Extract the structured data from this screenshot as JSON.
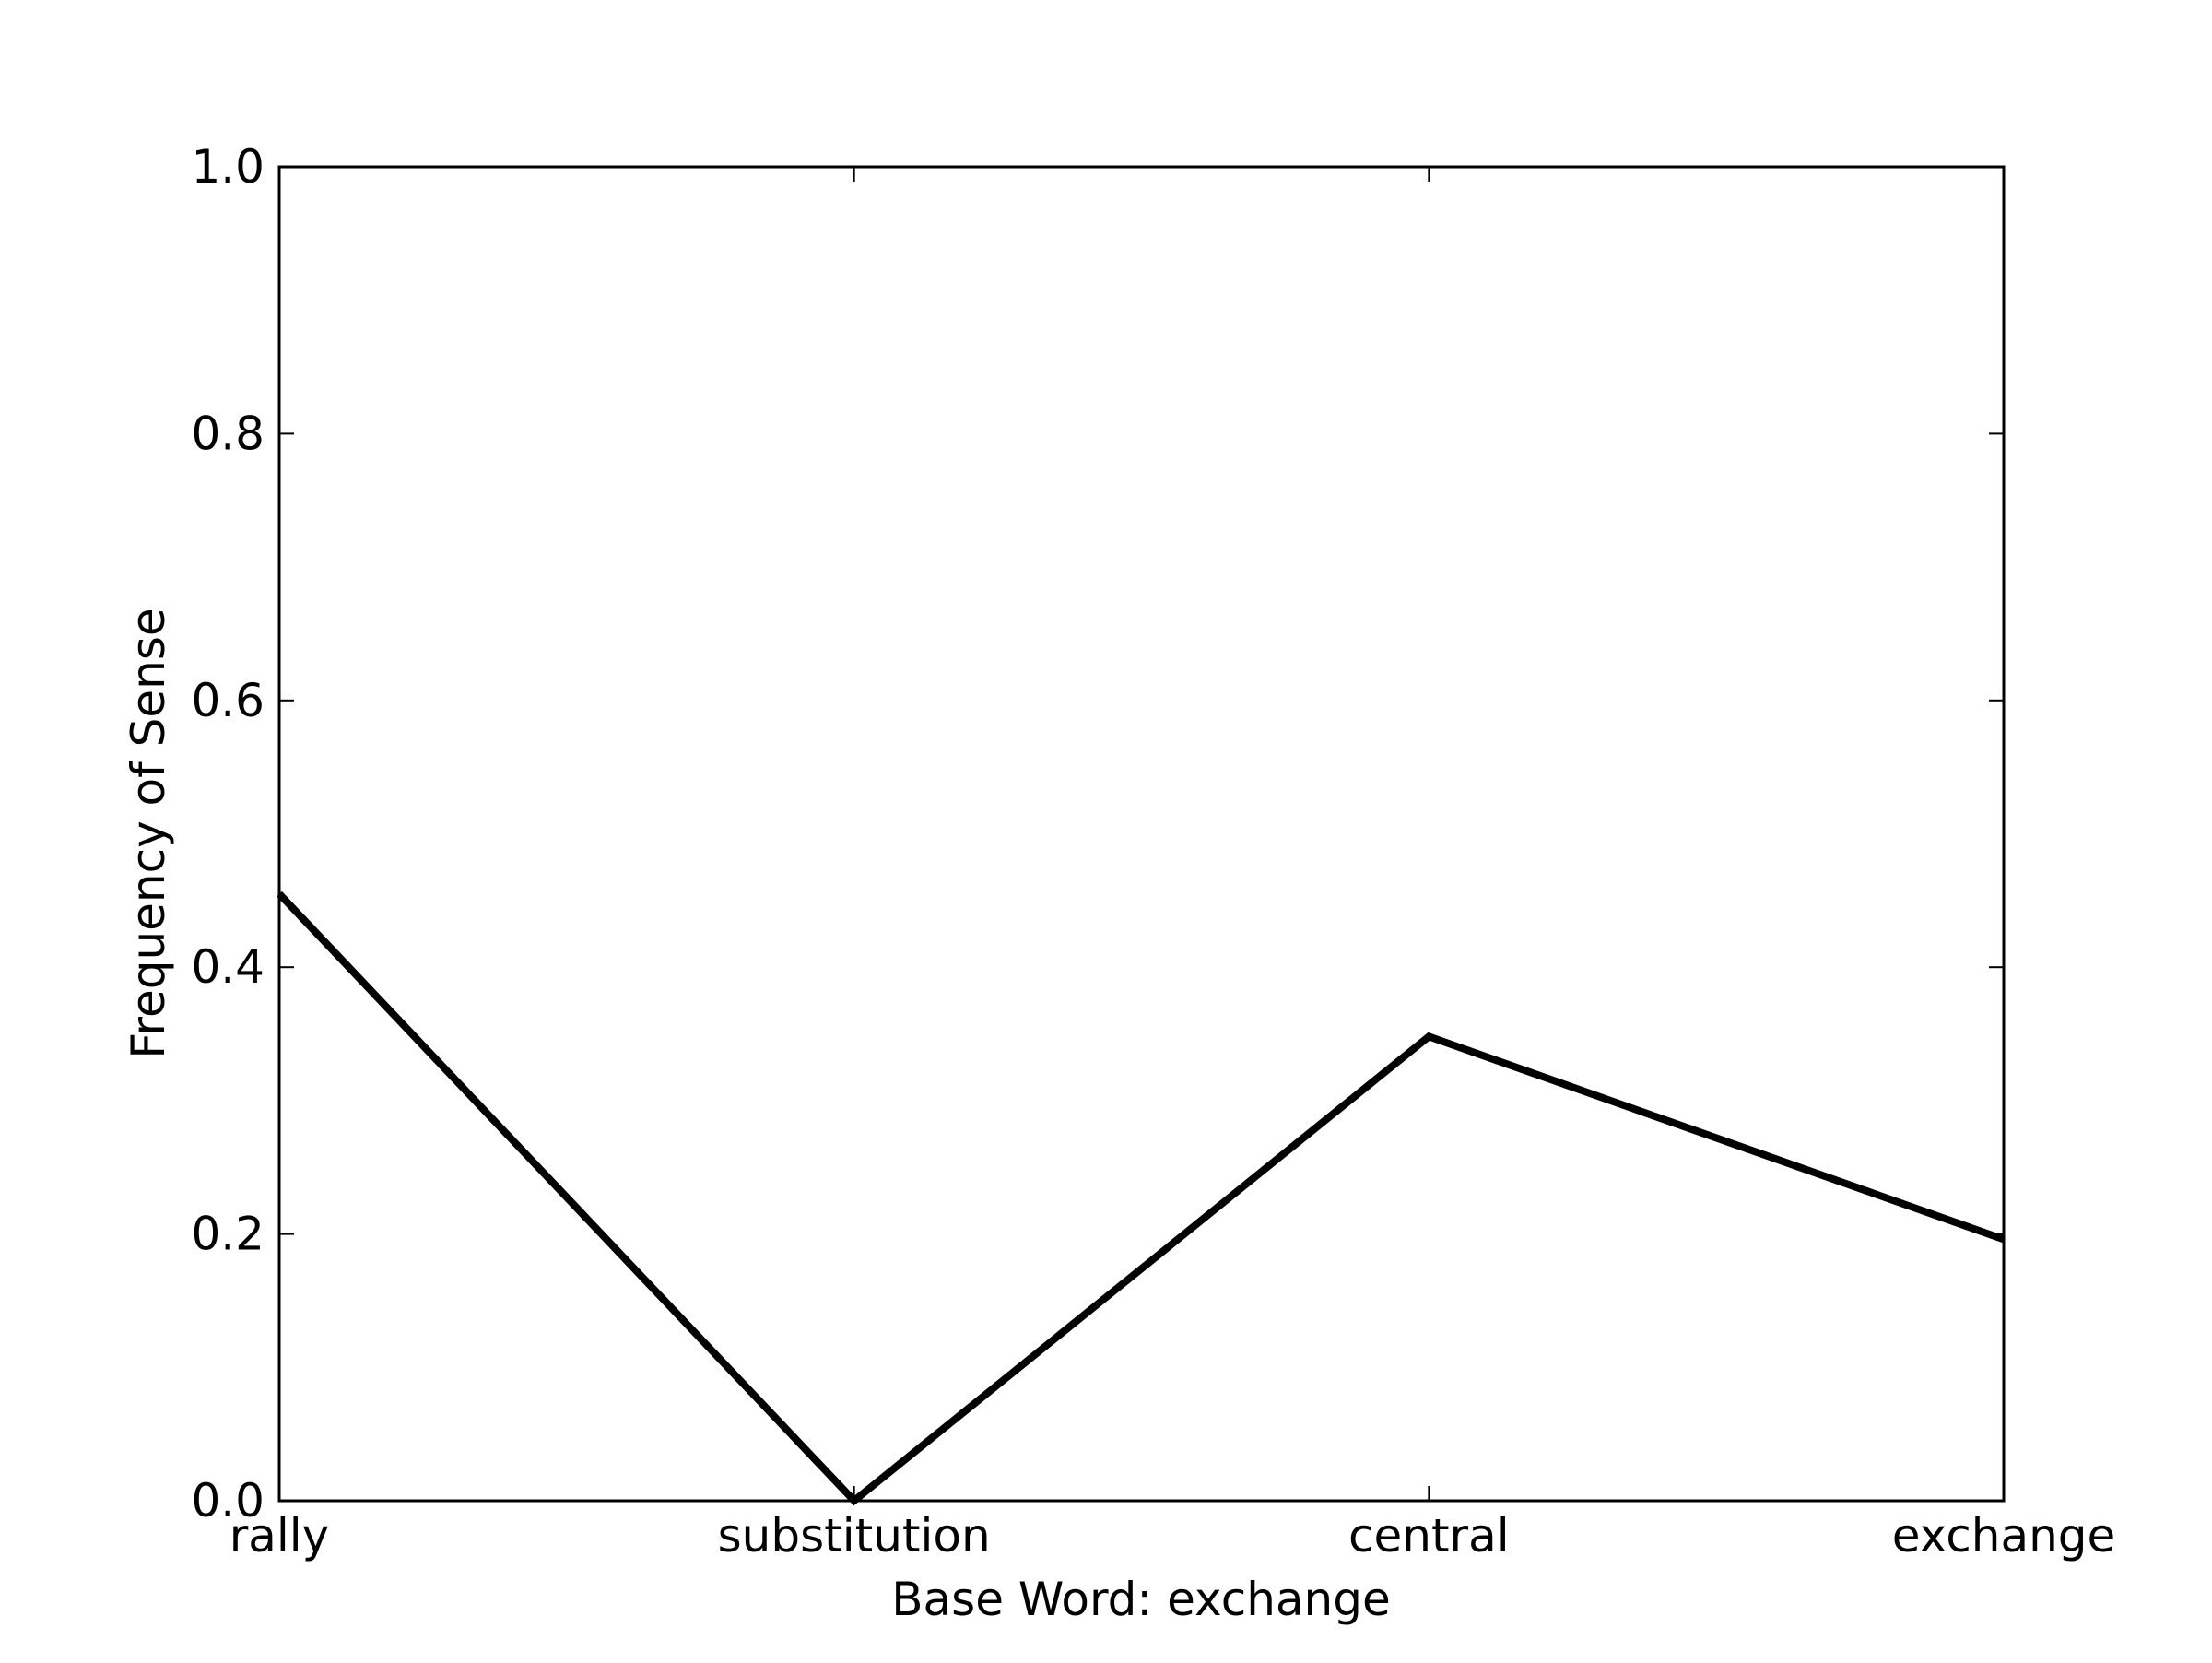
{
  "chart_data": {
    "type": "line",
    "title": "",
    "xlabel": "Base Word: exchange",
    "ylabel": "Frequency of Sense",
    "categories": [
      "rally",
      "substitution",
      "central",
      "exchange"
    ],
    "series": [
      {
        "values": [
          0.455,
          0.0,
          0.348,
          0.196
        ]
      }
    ],
    "ylim": [
      0.0,
      1.0
    ],
    "yticks": [
      "0.0",
      "0.2",
      "0.4",
      "0.6",
      "0.8",
      "1.0"
    ],
    "grid": false,
    "legend": "none",
    "line_color": "#000000",
    "axis_color": "#000000",
    "background": "#ffffff"
  }
}
